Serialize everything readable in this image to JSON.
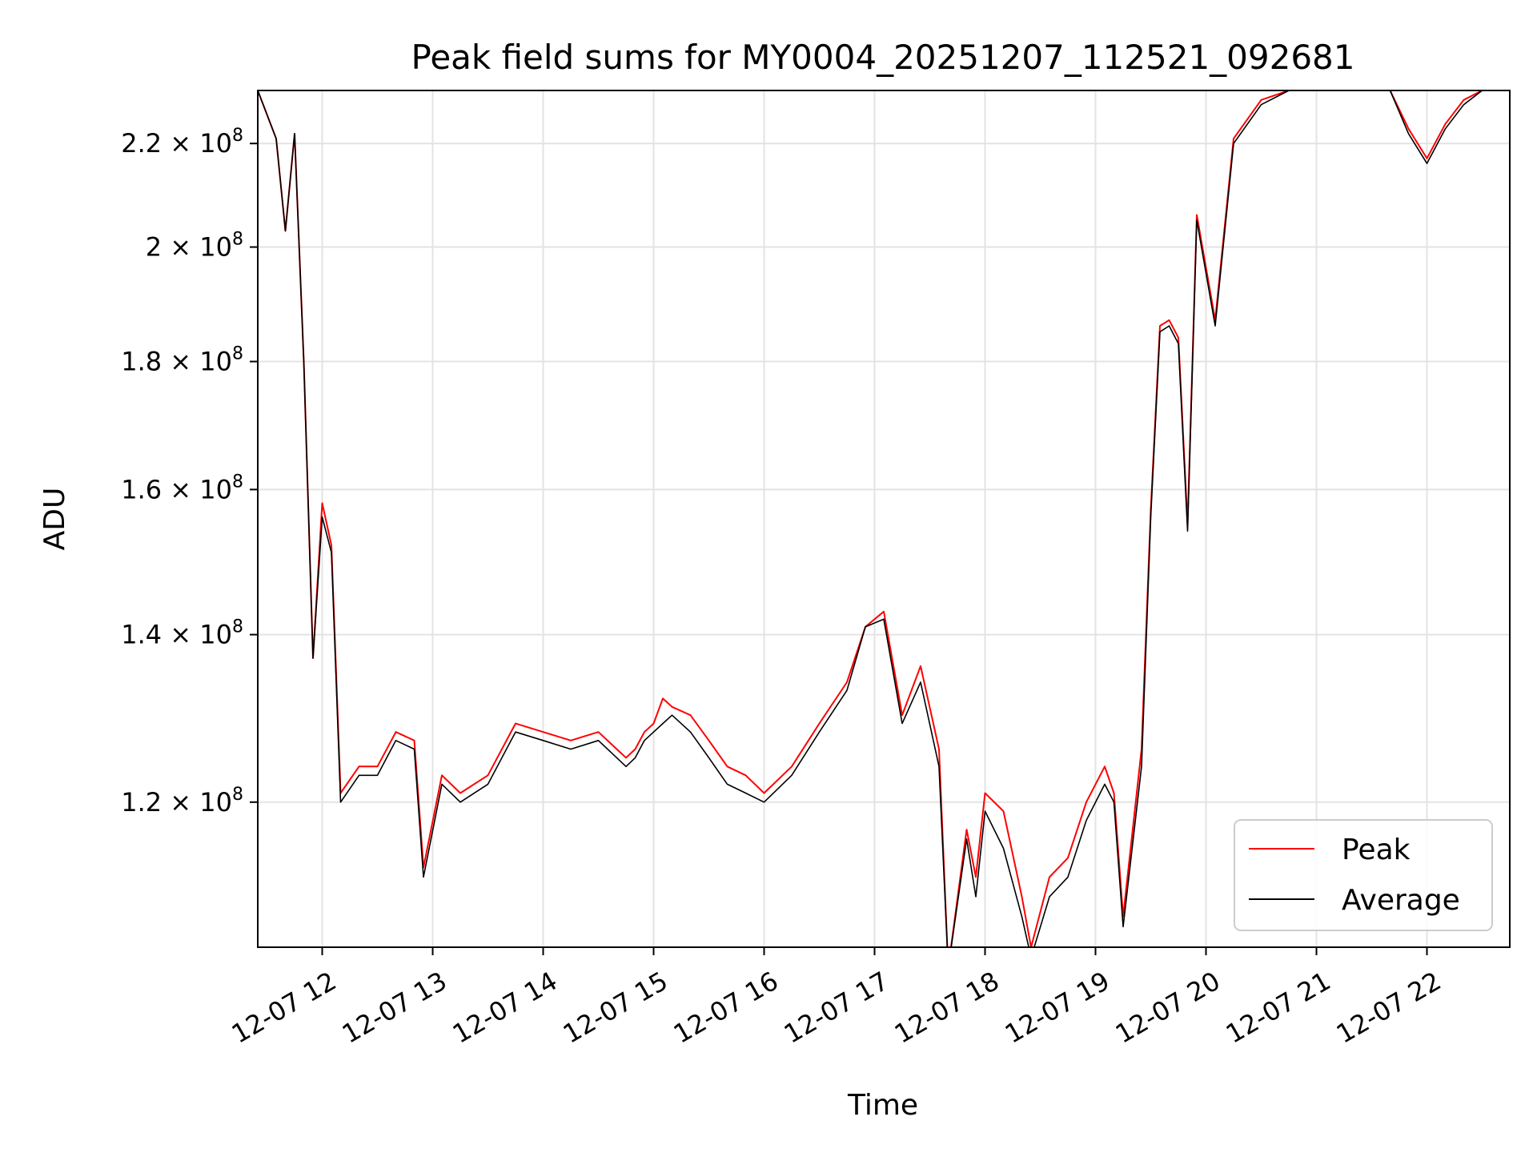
{
  "chart_data": {
    "type": "line",
    "title": "Peak field sums for MY0004_20251207_112521_092681",
    "xlabel": "Time",
    "ylabel": "ADU",
    "y_scale": "log",
    "xlim": [
      "2025-12-07 11:25",
      "2025-12-07 22:45"
    ],
    "ylim": [
      105000000,
      231000000
    ],
    "grid": true,
    "legend_position": "lower-right",
    "x_ticks": [
      {
        "label": "12-07 12",
        "value": "2025-12-07 12:00"
      },
      {
        "label": "12-07 13",
        "value": "2025-12-07 13:00"
      },
      {
        "label": "12-07 14",
        "value": "2025-12-07 14:00"
      },
      {
        "label": "12-07 15",
        "value": "2025-12-07 15:00"
      },
      {
        "label": "12-07 16",
        "value": "2025-12-07 16:00"
      },
      {
        "label": "12-07 17",
        "value": "2025-12-07 17:00"
      },
      {
        "label": "12-07 18",
        "value": "2025-12-07 18:00"
      },
      {
        "label": "12-07 19",
        "value": "2025-12-07 19:00"
      },
      {
        "label": "12-07 20",
        "value": "2025-12-07 20:00"
      },
      {
        "label": "12-07 21",
        "value": "2025-12-07 21:00"
      },
      {
        "label": "12-07 22",
        "value": "2025-12-07 22:00"
      }
    ],
    "y_ticks": [
      {
        "mantissa": "1.2",
        "exponent": "8",
        "value": 120000000
      },
      {
        "mantissa": "1.4",
        "exponent": "8",
        "value": 140000000
      },
      {
        "mantissa": "1.6",
        "exponent": "8",
        "value": 160000000
      },
      {
        "mantissa": "1.8",
        "exponent": "8",
        "value": 180000000
      },
      {
        "mantissa": "2",
        "exponent": "8",
        "value": 200000000
      },
      {
        "mantissa": "2.2",
        "exponent": "8",
        "value": 220000000
      }
    ],
    "series": [
      {
        "name": "Peak",
        "color": "#ff0000",
        "x": [
          "2025-12-07 11:25",
          "2025-12-07 11:35",
          "2025-12-07 11:40",
          "2025-12-07 11:45",
          "2025-12-07 11:50",
          "2025-12-07 11:55",
          "2025-12-07 12:00",
          "2025-12-07 12:05",
          "2025-12-07 12:10",
          "2025-12-07 12:20",
          "2025-12-07 12:30",
          "2025-12-07 12:40",
          "2025-12-07 12:50",
          "2025-12-07 12:55",
          "2025-12-07 13:05",
          "2025-12-07 13:15",
          "2025-12-07 13:30",
          "2025-12-07 13:45",
          "2025-12-07 14:00",
          "2025-12-07 14:15",
          "2025-12-07 14:30",
          "2025-12-07 14:45",
          "2025-12-07 14:50",
          "2025-12-07 14:55",
          "2025-12-07 15:00",
          "2025-12-07 15:05",
          "2025-12-07 15:10",
          "2025-12-07 15:20",
          "2025-12-07 15:30",
          "2025-12-07 15:40",
          "2025-12-07 15:50",
          "2025-12-07 16:00",
          "2025-12-07 16:15",
          "2025-12-07 16:30",
          "2025-12-07 16:45",
          "2025-12-07 16:55",
          "2025-12-07 17:05",
          "2025-12-07 17:15",
          "2025-12-07 17:25",
          "2025-12-07 17:35",
          "2025-12-07 17:40",
          "2025-12-07 17:50",
          "2025-12-07 17:55",
          "2025-12-07 18:00",
          "2025-12-07 18:10",
          "2025-12-07 18:20",
          "2025-12-07 18:25",
          "2025-12-07 18:35",
          "2025-12-07 18:45",
          "2025-12-07 18:55",
          "2025-12-07 19:05",
          "2025-12-07 19:10",
          "2025-12-07 19:15",
          "2025-12-07 19:25",
          "2025-12-07 19:30",
          "2025-12-07 19:35",
          "2025-12-07 19:40",
          "2025-12-07 19:45",
          "2025-12-07 19:50",
          "2025-12-07 19:55",
          "2025-12-07 20:05",
          "2025-12-07 20:15",
          "2025-12-07 20:30",
          "2025-12-07 20:45",
          "2025-12-07 21:00",
          "2025-12-07 21:15",
          "2025-12-07 21:30",
          "2025-12-07 21:40",
          "2025-12-07 21:50",
          "2025-12-07 22:00",
          "2025-12-07 22:10",
          "2025-12-07 22:20",
          "2025-12-07 22:30",
          "2025-12-07 22:40"
        ],
        "y": [
          231000000,
          221000000,
          203000000,
          222000000,
          180000000,
          137000000,
          158000000,
          152000000,
          121000000,
          124000000,
          124000000,
          128000000,
          127000000,
          113000000,
          123000000,
          121000000,
          123000000,
          129000000,
          128000000,
          127000000,
          128000000,
          125000000,
          126000000,
          128000000,
          129000000,
          132000000,
          131000000,
          130000000,
          127000000,
          124000000,
          123000000,
          121000000,
          124000000,
          129000000,
          134000000,
          141000000,
          143000000,
          130000000,
          136000000,
          126000000,
          103000000,
          117000000,
          112000000,
          121000000,
          119000000,
          110000000,
          105000000,
          112000000,
          114000000,
          120000000,
          124000000,
          121000000,
          108000000,
          126000000,
          157000000,
          186000000,
          187000000,
          184000000,
          155000000,
          206000000,
          187000000,
          221000000,
          229000000,
          231000000,
          231000000,
          231000000,
          231000000,
          231000000,
          223000000,
          217000000,
          224000000,
          229000000,
          231000000,
          231000000
        ]
      },
      {
        "name": "Average",
        "color": "#000000",
        "x": [
          "2025-12-07 11:25",
          "2025-12-07 11:35",
          "2025-12-07 11:40",
          "2025-12-07 11:45",
          "2025-12-07 11:50",
          "2025-12-07 11:55",
          "2025-12-07 12:00",
          "2025-12-07 12:05",
          "2025-12-07 12:10",
          "2025-12-07 12:20",
          "2025-12-07 12:30",
          "2025-12-07 12:40",
          "2025-12-07 12:50",
          "2025-12-07 12:55",
          "2025-12-07 13:05",
          "2025-12-07 13:15",
          "2025-12-07 13:30",
          "2025-12-07 13:45",
          "2025-12-07 14:00",
          "2025-12-07 14:15",
          "2025-12-07 14:30",
          "2025-12-07 14:45",
          "2025-12-07 14:50",
          "2025-12-07 14:55",
          "2025-12-07 15:00",
          "2025-12-07 15:05",
          "2025-12-07 15:10",
          "2025-12-07 15:20",
          "2025-12-07 15:30",
          "2025-12-07 15:40",
          "2025-12-07 15:50",
          "2025-12-07 16:00",
          "2025-12-07 16:15",
          "2025-12-07 16:30",
          "2025-12-07 16:45",
          "2025-12-07 16:55",
          "2025-12-07 17:05",
          "2025-12-07 17:15",
          "2025-12-07 17:25",
          "2025-12-07 17:35",
          "2025-12-07 17:40",
          "2025-12-07 17:50",
          "2025-12-07 17:55",
          "2025-12-07 18:00",
          "2025-12-07 18:10",
          "2025-12-07 18:20",
          "2025-12-07 18:25",
          "2025-12-07 18:35",
          "2025-12-07 18:45",
          "2025-12-07 18:55",
          "2025-12-07 19:05",
          "2025-12-07 19:10",
          "2025-12-07 19:15",
          "2025-12-07 19:25",
          "2025-12-07 19:30",
          "2025-12-07 19:35",
          "2025-12-07 19:40",
          "2025-12-07 19:45",
          "2025-12-07 19:50",
          "2025-12-07 19:55",
          "2025-12-07 20:05",
          "2025-12-07 20:15",
          "2025-12-07 20:30",
          "2025-12-07 20:45",
          "2025-12-07 21:00",
          "2025-12-07 21:15",
          "2025-12-07 21:30",
          "2025-12-07 21:40",
          "2025-12-07 21:50",
          "2025-12-07 22:00",
          "2025-12-07 22:10",
          "2025-12-07 22:20",
          "2025-12-07 22:30",
          "2025-12-07 22:40"
        ],
        "y": [
          231000000,
          221000000,
          203000000,
          222000000,
          180000000,
          137000000,
          156000000,
          151000000,
          120000000,
          123000000,
          123000000,
          127000000,
          126000000,
          112000000,
          122000000,
          120000000,
          122000000,
          128000000,
          127000000,
          126000000,
          127000000,
          124000000,
          125000000,
          127000000,
          128000000,
          129000000,
          130000000,
          128000000,
          125000000,
          122000000,
          121000000,
          120000000,
          123000000,
          128000000,
          133000000,
          141000000,
          142000000,
          129000000,
          134000000,
          124000000,
          103000000,
          116000000,
          110000000,
          119000000,
          115000000,
          108000000,
          104000000,
          110000000,
          112000000,
          118000000,
          122000000,
          120000000,
          107000000,
          124000000,
          156000000,
          185000000,
          186000000,
          183000000,
          154000000,
          205000000,
          186000000,
          220000000,
          228000000,
          231000000,
          231000000,
          231000000,
          231000000,
          231000000,
          222000000,
          216000000,
          223000000,
          228000000,
          231000000,
          231000000
        ]
      }
    ]
  }
}
